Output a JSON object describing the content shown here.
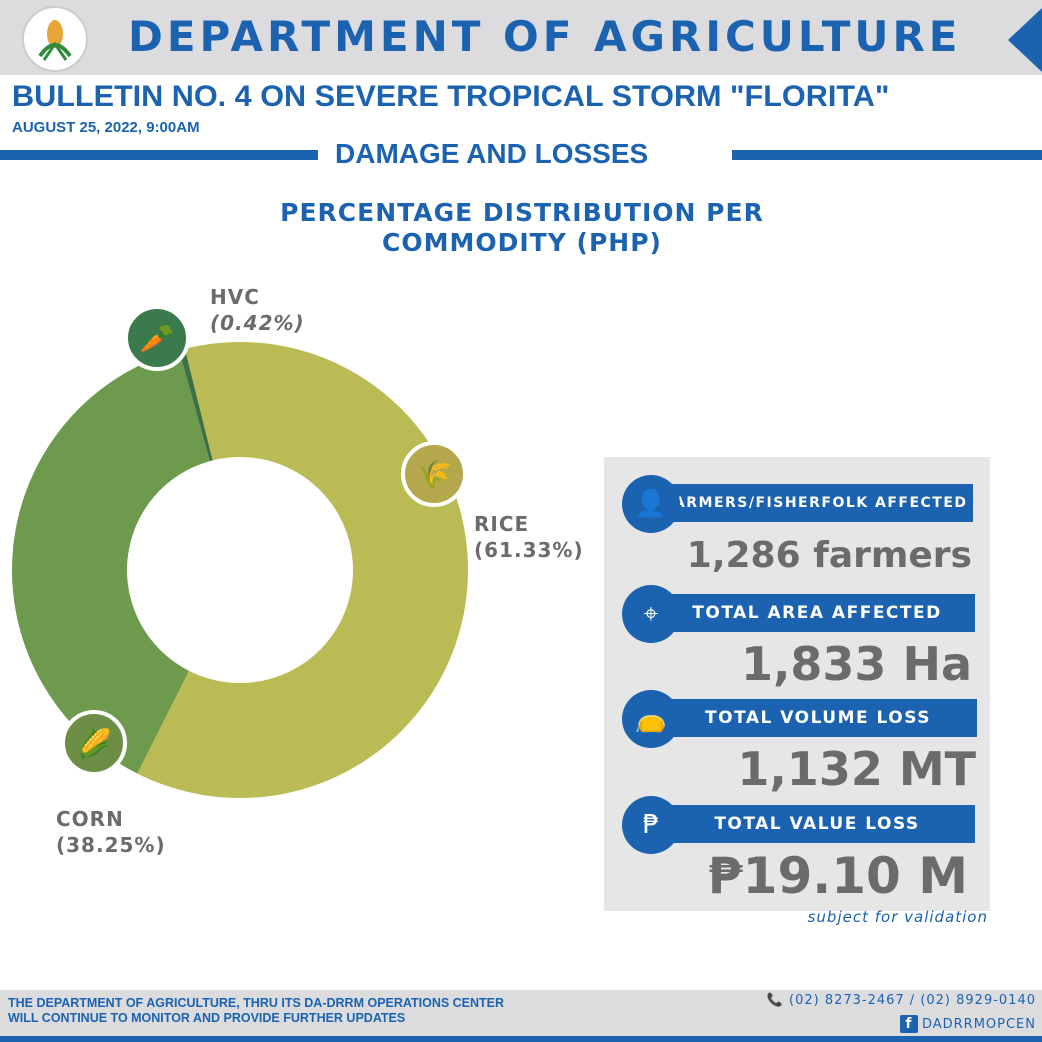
{
  "header": {
    "title": "DEPARTMENT OF AGRICULTURE",
    "logo_text": "DEPARTMENT OF AGRICULTURE"
  },
  "bulletin": {
    "title": "BULLETIN NO. 4 ON SEVERE TROPICAL STORM \"FLORITA\"",
    "date": "AUGUST 25, 2022, 9:00AM"
  },
  "section": "DAMAGE AND LOSSES",
  "chart_data": {
    "type": "pie",
    "variant": "donut",
    "title_line1": "PERCENTAGE DISTRIBUTION PER",
    "title_line2": "COMMODITY (PHP)",
    "slices": [
      {
        "label": "RICE",
        "value": 61.33,
        "display": "(61.33%)",
        "color": "#bbbb55",
        "icon": "wheat-icon",
        "icon_color": "#b5a84c"
      },
      {
        "label": "CORN",
        "value": 38.25,
        "display": "(38.25%)",
        "color": "#6e9a4e",
        "icon": "corn-icon",
        "icon_color": "#6d8f45"
      },
      {
        "label": "HVC",
        "value": 0.42,
        "display": "(0.42%)",
        "color": "#3f7045",
        "icon": "vegetable-crate-icon",
        "icon_color": "#3b7a4c"
      }
    ]
  },
  "stats": [
    {
      "label": "FARMERS/FISHERFOLK AFFECTED",
      "value": "1,286 farmers",
      "icon": "farmer-icon"
    },
    {
      "label": "TOTAL AREA AFFECTED",
      "value": "1,833 Ha",
      "icon": "map-pin-icon"
    },
    {
      "label": "TOTAL VOLUME LOSS",
      "value": "1,132 MT",
      "icon": "grain-sack-icon"
    },
    {
      "label": "TOTAL VALUE LOSS",
      "value": "₱19.10 M",
      "icon": "peso-icon"
    }
  ],
  "note": "subject for validation",
  "footer": {
    "line1": "THE DEPARTMENT OF AGRICULTURE, THRU ITS DA-DRRM OPERATIONS CENTER",
    "line2": "WILL CONTINUE TO MONITOR AND PROVIDE FURTHER UPDATES",
    "phone": "(02) 8273-2467 / (02) 8929-0140",
    "facebook": "DADRRMOPCEN"
  },
  "colors": {
    "brand_blue": "#1b63b0",
    "value_gray": "#6b6b6b"
  }
}
